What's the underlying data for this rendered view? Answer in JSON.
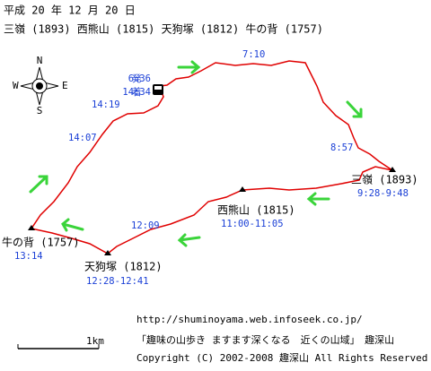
{
  "header": {
    "date": "平成 20 年 12 月 20 日",
    "peaks": "三嶺 (1893)  西熊山 (1815)  天狗塚 (1812)  牛の背 (1757)"
  },
  "compass": {
    "n": "N",
    "e": "E",
    "s": "S",
    "w": "W"
  },
  "start": {
    "depart": "発",
    "depart_time": "6:36",
    "arrive": "着",
    "arrive_time": "14:34"
  },
  "times": [
    "7:10",
    "8:57",
    "14:19",
    "14:07",
    "12:09",
    "13:14"
  ],
  "peaks": [
    {
      "label": "三嶺 (1893)",
      "time": "9:28-9:48"
    },
    {
      "label": "西熊山 (1815)",
      "time": "11:00-11:05"
    },
    {
      "label": "天狗塚 (1812)",
      "time": "12:28-12:41"
    },
    {
      "label": "牛の背 (1757)",
      "time": "13:14"
    }
  ],
  "scale": "1km",
  "footer": {
    "url": "http://shuminoyama.web.infoseek.co.jp/",
    "site": "「趣味の山歩き ますます深くなる　近くの山域」　趣深山",
    "copyright": "Copyright (C) 2002-2008 趣深山 All Rights Reserved"
  }
}
